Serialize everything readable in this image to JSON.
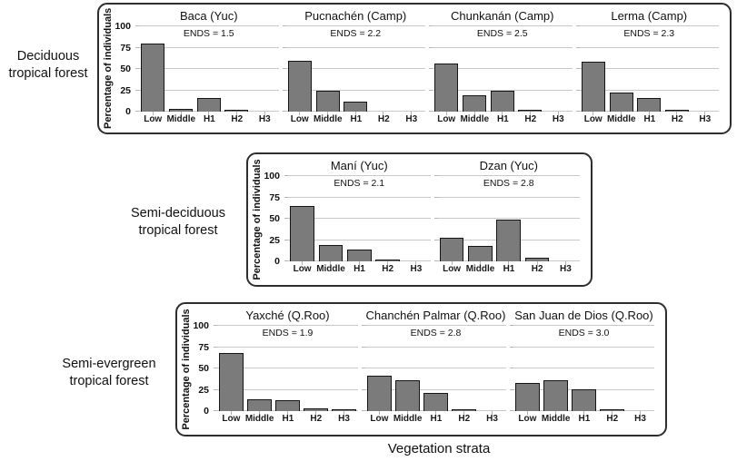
{
  "figure": {
    "y_axis_label": "Percentage of individuals",
    "x_axis_label": "Vegetation strata",
    "y_ticks": [
      0,
      25,
      50,
      75,
      100
    ],
    "categories": [
      "Low",
      "Middle",
      "H1",
      "H2",
      "H3"
    ],
    "bar_fill_color": "#7b7b7b",
    "bar_border_color": "#151515",
    "gridline_color": "#c9c9c9",
    "box_border_color": "#2e2e2e"
  },
  "chart_data": [
    {
      "type": "bar",
      "group": "Deciduous tropical forest",
      "categories": [
        "Low",
        "Middle",
        "H1",
        "H2",
        "H3"
      ],
      "ylabel": "Percentage of individuals",
      "ylim": [
        0,
        100
      ],
      "grid": true,
      "panels": [
        {
          "title": "Baca (Yuc)",
          "annotation": "ENDS = 1.5",
          "values": [
            80,
            3,
            16,
            1,
            0
          ]
        },
        {
          "title": "Pucnachén (Camp)",
          "annotation": "ENDS = 2.2",
          "values": [
            60,
            25,
            12,
            0,
            0
          ]
        },
        {
          "title": "Chunkanán (Camp)",
          "annotation": "ENDS = 2.5",
          "values": [
            56,
            19,
            25,
            1,
            0
          ]
        },
        {
          "title": "Lerma (Camp)",
          "annotation": "ENDS = 2.3",
          "values": [
            58,
            22,
            16,
            2,
            0
          ]
        }
      ]
    },
    {
      "type": "bar",
      "group": "Semi-deciduous tropical forest",
      "categories": [
        "Low",
        "Middle",
        "H1",
        "H2",
        "H3"
      ],
      "ylabel": "Percentage of individuals",
      "ylim": [
        0,
        100
      ],
      "grid": true,
      "panels": [
        {
          "title": "Maní (Yuc)",
          "annotation": "ENDS = 2.1",
          "values": [
            65,
            19,
            14,
            1,
            0
          ]
        },
        {
          "title": "Dzan (Yuc)",
          "annotation": "ENDS = 2.8",
          "values": [
            28,
            18,
            49,
            4,
            0
          ]
        }
      ]
    },
    {
      "type": "bar",
      "group": "Semi-evergreen tropical forest",
      "categories": [
        "Low",
        "Middle",
        "H1",
        "H2",
        "H3"
      ],
      "ylabel": "Percentage of individuals",
      "ylim": [
        0,
        100
      ],
      "grid": true,
      "panels": [
        {
          "title": "Yaxché (Q.Roo)",
          "annotation": "ENDS = 1.9",
          "values": [
            68,
            14,
            13,
            3,
            1
          ]
        },
        {
          "title": "Chanchén Palmar (Q.Roo)",
          "annotation": "ENDS = 2.8",
          "values": [
            42,
            36,
            21,
            1,
            0
          ]
        },
        {
          "title": "San Juan de Dios (Q.Roo)",
          "annotation": "ENDS = 3.0",
          "values": [
            33,
            36,
            26,
            2,
            0
          ]
        }
      ]
    }
  ]
}
